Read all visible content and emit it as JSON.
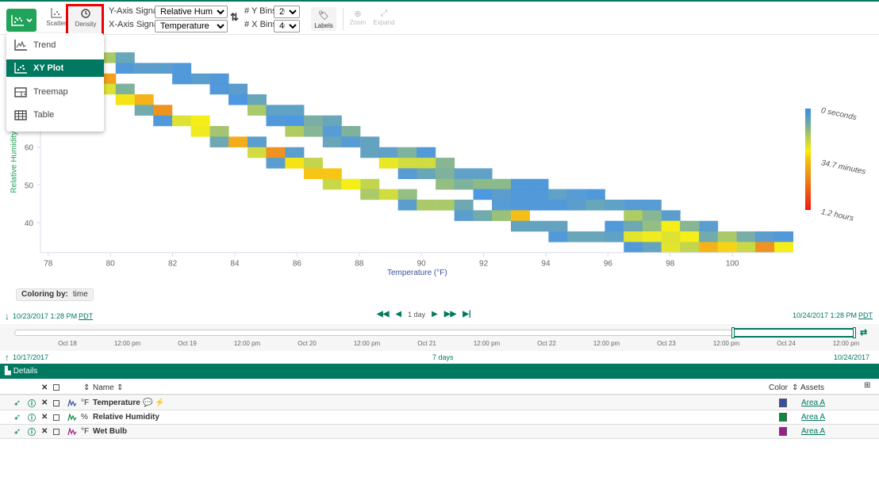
{
  "toolbar": {
    "scatter_label": "Scatter",
    "density_label": "Density",
    "y_axis_signal_label": "Y-Axis Signal:",
    "y_axis_signal_value": "Relative Humidity",
    "x_axis_signal_label": "X-Axis Signal:",
    "x_axis_signal_value": "Temperature",
    "y_bins_label": "# Y Bins:",
    "y_bins_value": "20",
    "x_bins_label": "# X Bins:",
    "x_bins_value": "40",
    "labels_label": "Labels",
    "zoom_label": "Zoom",
    "expand_label": "Expand"
  },
  "view_menu": {
    "items": [
      {
        "label": "Trend",
        "icon": "trend-icon"
      },
      {
        "label": "XY Plot",
        "icon": "xy-plot-icon",
        "active": true
      },
      {
        "label": "Treemap",
        "icon": "treemap-icon"
      },
      {
        "label": "Table",
        "icon": "table-icon"
      }
    ]
  },
  "chart_data": {
    "type": "heatmap",
    "xlabel": "Temperature (°F)",
    "ylabel": "Relative Humidity (%)",
    "x_ticks": [
      78,
      80,
      82,
      84,
      86,
      88,
      90,
      92,
      94,
      96,
      98,
      100
    ],
    "y_ticks": [
      40,
      50,
      60
    ],
    "xlim": [
      77.75,
      101.96
    ],
    "ylim": [
      32.1,
      87.9
    ],
    "x_bins": 40,
    "y_bins": 20,
    "color_unit": "minutes",
    "colorbar": {
      "labels": [
        "0 seconds",
        "34.7 minutes",
        "1.2 hours"
      ],
      "values": [
        0,
        34.7,
        72
      ],
      "colors": [
        "#3b8ded",
        "#6aa6a8",
        "#a5c660",
        "#f7ee0a",
        "#f5c20a",
        "#ee8c14",
        "#f21a10"
      ]
    },
    "cells": [
      [
        79.87,
        83.7,
        18
      ],
      [
        80.47,
        83.7,
        8
      ],
      [
        80.47,
        80.9,
        3
      ],
      [
        81.08,
        80.9,
        5
      ],
      [
        81.68,
        80.9,
        5
      ],
      [
        82.29,
        80.9,
        3
      ],
      [
        79.87,
        78.1,
        45
      ],
      [
        82.29,
        78.1,
        3
      ],
      [
        82.89,
        78.1,
        5
      ],
      [
        83.5,
        78.1,
        3
      ],
      [
        79.87,
        75.4,
        26
      ],
      [
        80.47,
        75.4,
        12
      ],
      [
        83.5,
        75.4,
        3
      ],
      [
        84.1,
        75.4,
        5
      ],
      [
        80.47,
        72.6,
        32
      ],
      [
        81.08,
        72.6,
        40
      ],
      [
        84.1,
        72.6,
        2
      ],
      [
        84.71,
        72.6,
        8
      ],
      [
        81.08,
        69.8,
        10
      ],
      [
        81.68,
        69.8,
        48
      ],
      [
        84.71,
        69.8,
        18
      ],
      [
        85.31,
        69.8,
        6
      ],
      [
        85.92,
        69.8,
        6
      ],
      [
        81.68,
        67.0,
        3
      ],
      [
        82.29,
        67.0,
        26
      ],
      [
        82.89,
        67.0,
        30
      ],
      [
        85.31,
        67.0,
        3
      ],
      [
        85.92,
        67.0,
        2
      ],
      [
        86.52,
        67.0,
        11
      ],
      [
        87.13,
        67.0,
        8
      ],
      [
        82.89,
        64.2,
        29
      ],
      [
        83.5,
        64.2,
        17
      ],
      [
        85.92,
        64.2,
        19
      ],
      [
        86.52,
        64.2,
        13
      ],
      [
        87.13,
        64.2,
        4
      ],
      [
        87.73,
        64.2,
        12
      ],
      [
        83.5,
        61.4,
        9
      ],
      [
        84.1,
        61.4,
        42
      ],
      [
        84.71,
        61.4,
        5
      ],
      [
        87.13,
        61.4,
        8
      ],
      [
        87.73,
        61.4,
        4
      ],
      [
        88.34,
        61.4,
        7
      ],
      [
        84.71,
        58.6,
        24
      ],
      [
        85.31,
        58.6,
        48
      ],
      [
        85.92,
        58.6,
        5
      ],
      [
        88.34,
        58.6,
        7
      ],
      [
        88.94,
        58.6,
        6
      ],
      [
        89.55,
        58.6,
        12
      ],
      [
        90.15,
        58.6,
        3
      ],
      [
        85.31,
        55.8,
        5
      ],
      [
        85.92,
        55.8,
        32
      ],
      [
        86.52,
        55.8,
        22
      ],
      [
        88.94,
        55.8,
        28
      ],
      [
        89.55,
        55.8,
        24
      ],
      [
        90.15,
        55.8,
        24
      ],
      [
        90.76,
        55.8,
        13
      ],
      [
        86.52,
        53.0,
        36
      ],
      [
        87.13,
        53.0,
        36
      ],
      [
        89.55,
        53.0,
        4
      ],
      [
        90.15,
        53.0,
        8
      ],
      [
        90.76,
        53.0,
        12
      ],
      [
        91.36,
        53.0,
        6
      ],
      [
        91.97,
        53.0,
        6
      ],
      [
        87.13,
        50.2,
        23
      ],
      [
        87.73,
        50.2,
        30
      ],
      [
        88.34,
        50.2,
        22
      ],
      [
        90.76,
        50.2,
        15
      ],
      [
        91.36,
        50.2,
        12
      ],
      [
        91.97,
        50.2,
        14
      ],
      [
        92.57,
        50.2,
        14
      ],
      [
        93.18,
        50.2,
        3
      ],
      [
        93.78,
        50.2,
        3
      ],
      [
        88.34,
        47.5,
        18
      ],
      [
        88.94,
        47.5,
        24
      ],
      [
        89.55,
        47.5,
        15
      ],
      [
        91.97,
        47.5,
        2
      ],
      [
        92.57,
        47.5,
        5
      ],
      [
        93.18,
        47.5,
        3
      ],
      [
        93.78,
        47.5,
        3
      ],
      [
        94.39,
        47.5,
        6
      ],
      [
        94.99,
        47.5,
        4
      ],
      [
        95.6,
        47.5,
        3
      ],
      [
        89.55,
        44.7,
        5
      ],
      [
        90.15,
        44.7,
        18
      ],
      [
        90.76,
        44.7,
        18
      ],
      [
        91.36,
        44.7,
        9
      ],
      [
        92.57,
        44.7,
        4
      ],
      [
        93.18,
        44.7,
        3
      ],
      [
        93.78,
        44.7,
        3
      ],
      [
        94.39,
        44.7,
        3
      ],
      [
        94.99,
        44.7,
        5
      ],
      [
        95.6,
        44.7,
        8
      ],
      [
        96.2,
        44.7,
        6
      ],
      [
        96.81,
        44.7,
        4
      ],
      [
        97.41,
        44.7,
        4
      ],
      [
        91.36,
        41.9,
        5
      ],
      [
        91.97,
        41.9,
        10
      ],
      [
        92.57,
        41.9,
        16
      ],
      [
        93.18,
        41.9,
        38
      ],
      [
        96.81,
        41.9,
        19
      ],
      [
        97.41,
        41.9,
        13
      ],
      [
        98.02,
        41.9,
        5
      ],
      [
        93.18,
        39.1,
        7
      ],
      [
        93.78,
        39.1,
        7
      ],
      [
        94.39,
        39.1,
        7
      ],
      [
        96.2,
        39.1,
        3
      ],
      [
        96.81,
        39.1,
        9
      ],
      [
        97.41,
        39.1,
        15
      ],
      [
        98.02,
        39.1,
        30
      ],
      [
        98.62,
        39.1,
        13
      ],
      [
        99.23,
        39.1,
        5
      ],
      [
        94.39,
        36.3,
        3
      ],
      [
        94.99,
        36.3,
        8
      ],
      [
        95.6,
        36.3,
        8
      ],
      [
        96.2,
        36.3,
        6
      ],
      [
        96.81,
        36.3,
        27
      ],
      [
        97.41,
        36.3,
        29
      ],
      [
        98.02,
        36.3,
        26
      ],
      [
        98.62,
        36.3,
        30
      ],
      [
        99.23,
        36.3,
        10
      ],
      [
        99.83,
        36.3,
        18
      ],
      [
        100.44,
        36.3,
        11
      ],
      [
        101.04,
        36.3,
        5
      ],
      [
        101.65,
        36.3,
        3
      ],
      [
        96.81,
        33.5,
        3
      ],
      [
        97.41,
        33.5,
        7
      ],
      [
        98.02,
        33.5,
        27
      ],
      [
        98.62,
        33.5,
        22
      ],
      [
        99.23,
        33.5,
        40
      ],
      [
        99.83,
        33.5,
        34
      ],
      [
        100.44,
        33.5,
        23
      ],
      [
        101.04,
        33.5,
        48
      ],
      [
        101.65,
        33.5,
        30
      ]
    ]
  },
  "coloring": {
    "label": "Coloring by:",
    "value": "time"
  },
  "display_range": {
    "start": "10/23/2017 1:28 PM",
    "end": "10/24/2017 1:28 PM",
    "tz": "PDT",
    "duration": "1 day"
  },
  "investigate_range": {
    "start": "10/17/2017",
    "end": "10/24/2017",
    "duration": "7 days"
  },
  "timeline_ticks": [
    "Oct 18",
    "12:00 pm",
    "Oct 19",
    "12:00 pm",
    "Oct 20",
    "12:00 pm",
    "Oct 21",
    "12:00 pm",
    "Oct 22",
    "12:00 pm",
    "Oct 23",
    "12:00 pm",
    "Oct 24",
    "12:00 pm"
  ],
  "details": {
    "title": "Details",
    "columns": {
      "name": "Name",
      "color": "Color",
      "assets": "Assets"
    },
    "rows": [
      {
        "unit": "°F",
        "name": "Temperature",
        "color": "#3b4fa0",
        "asset": "Area A",
        "sparkline_color": "#3b4fa0"
      },
      {
        "unit": "%",
        "name": "Relative Humidity",
        "color": "#0d8a40",
        "asset": "Area A",
        "sparkline_color": "#0d8a40"
      },
      {
        "unit": "°F",
        "name": "Wet Bulb",
        "color": "#9a1e8e",
        "asset": "Area A",
        "sparkline_color": "#9a1e8e"
      }
    ]
  }
}
